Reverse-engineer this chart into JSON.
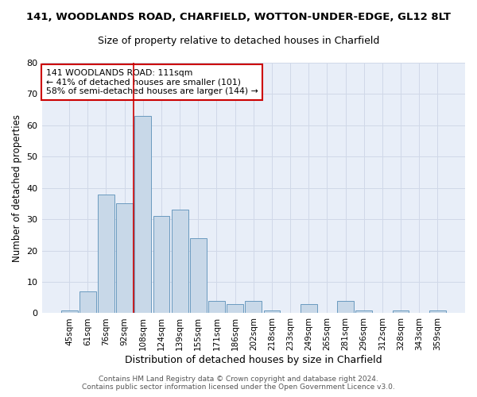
{
  "title": "141, WOODLANDS ROAD, CHARFIELD, WOTTON-UNDER-EDGE, GL12 8LT",
  "subtitle": "Size of property relative to detached houses in Charfield",
  "xlabel": "Distribution of detached houses by size in Charfield",
  "ylabel": "Number of detached properties",
  "categories": [
    "45sqm",
    "61sqm",
    "76sqm",
    "92sqm",
    "108sqm",
    "124sqm",
    "139sqm",
    "155sqm",
    "171sqm",
    "186sqm",
    "202sqm",
    "218sqm",
    "233sqm",
    "249sqm",
    "265sqm",
    "281sqm",
    "296sqm",
    "312sqm",
    "328sqm",
    "343sqm",
    "359sqm"
  ],
  "values": [
    1,
    7,
    38,
    35,
    63,
    31,
    33,
    24,
    4,
    3,
    4,
    1,
    0,
    3,
    0,
    4,
    1,
    0,
    1,
    0,
    1
  ],
  "bar_color": "#c8d8e8",
  "bar_edge_color": "#6a9abf",
  "grid_color": "#d0d8e8",
  "background_color": "#e8eef8",
  "vline_x": 3.5,
  "vline_color": "#cc0000",
  "annotation_text": "141 WOODLANDS ROAD: 111sqm\n← 41% of detached houses are smaller (101)\n58% of semi-detached houses are larger (144) →",
  "annotation_box_color": "#ffffff",
  "annotation_box_edge": "#cc0000",
  "ylim": [
    0,
    80
  ],
  "yticks": [
    0,
    10,
    20,
    30,
    40,
    50,
    60,
    70,
    80
  ],
  "footer_line1": "Contains HM Land Registry data © Crown copyright and database right 2024.",
  "footer_line2": "Contains public sector information licensed under the Open Government Licence v3.0."
}
